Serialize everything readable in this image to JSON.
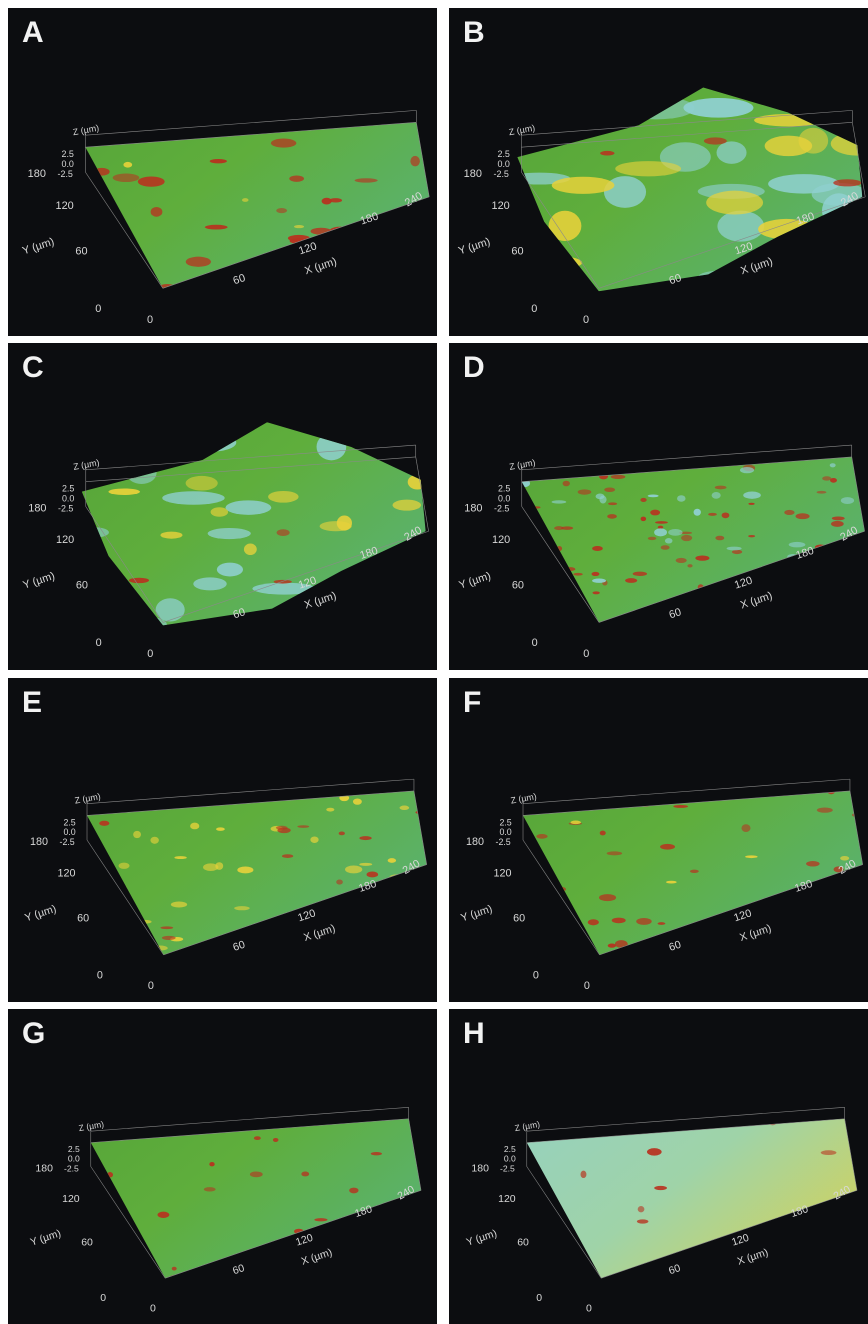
{
  "panels": [
    {
      "id": "A",
      "surface": "flat-green-with-red-spots"
    },
    {
      "id": "B",
      "surface": "rough-green-yellow-cyan"
    },
    {
      "id": "C",
      "surface": "rough-green-cyan-yellow-patches"
    },
    {
      "id": "D",
      "surface": "dense-textured-green-red"
    },
    {
      "id": "E",
      "surface": "green-with-scattered-yellow-red"
    },
    {
      "id": "F",
      "surface": "green-with-red-clusters"
    },
    {
      "id": "G",
      "surface": "green-with-sparse-red"
    },
    {
      "id": "H",
      "surface": "smooth-cyan-yellow-gradient"
    }
  ],
  "axes": {
    "z_label": "Z (µm)",
    "z_ticks": [
      "2.5",
      "0.0",
      "-2.5"
    ],
    "y_label": "Y (µm)",
    "y_ticks": [
      "180",
      "120",
      "60",
      "0"
    ],
    "x_label": "X (µm)",
    "x_ticks": [
      "0",
      "60",
      "120",
      "180",
      "240"
    ]
  },
  "colors": {
    "background": "#0c0d10",
    "surface_green": "#5fae3c",
    "surface_cyan": "#8fd0d0",
    "surface_yellow": "#e8d23a",
    "surface_red": "#b8321f",
    "axis_text": "#d8d8d8"
  }
}
